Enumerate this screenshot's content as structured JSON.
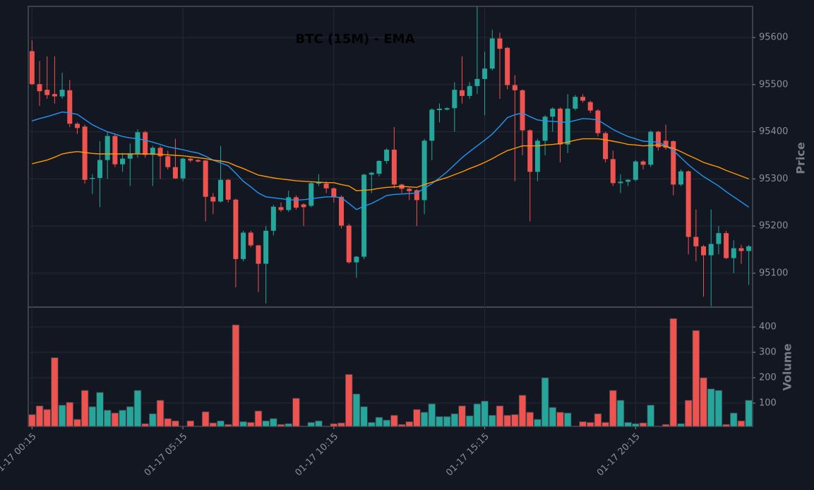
{
  "chart_data": {
    "type": "candlestick",
    "title": "BTC (15M) - EMA",
    "y_label": "Price",
    "categories": [
      "01-17 00:15",
      null,
      null,
      null,
      null,
      null,
      null,
      null,
      null,
      null,
      null,
      null,
      null,
      null,
      null,
      null,
      null,
      null,
      null,
      null,
      "01-17 05:15",
      null,
      null,
      null,
      null,
      null,
      null,
      null,
      null,
      null,
      null,
      null,
      null,
      null,
      null,
      null,
      null,
      null,
      null,
      null,
      "01-17 10:15",
      null,
      null,
      null,
      null,
      null,
      null,
      null,
      null,
      null,
      null,
      null,
      null,
      null,
      null,
      null,
      null,
      null,
      null,
      null,
      "01-17 15:15",
      null,
      null,
      null,
      null,
      null,
      null,
      null,
      null,
      null,
      null,
      null,
      null,
      null,
      null,
      null,
      null,
      null,
      null,
      null,
      "01-17 20:15",
      null,
      null,
      null,
      null,
      null,
      null,
      null,
      null,
      null,
      null,
      null,
      null,
      null,
      null,
      null
    ],
    "open": [
      95571,
      95501,
      95489,
      95480,
      95475,
      95488,
      95417,
      95411,
      95300,
      95302,
      95340,
      95391,
      95331,
      95343,
      95354,
      95399,
      95351,
      95366,
      95348,
      95325,
      95301,
      95343,
      95340,
      95339,
      95262,
      95252,
      95298,
      95256,
      95130,
      95186,
      95159,
      95120,
      95190,
      95240,
      95234,
      95261,
      95246,
      95243,
      95290,
      95290,
      95280,
      95262,
      95201,
      95123,
      95135,
      95309,
      95311,
      95338,
      95362,
      95288,
      95279,
      95276,
      95255,
      95381,
      95446,
      95447,
      95450,
      95488,
      95476,
      95497,
      95512,
      95534,
      95598,
      95578,
      95499,
      95488,
      95403,
      95315,
      95381,
      95432,
      95449,
      95373,
      95449,
      95474,
      95463,
      95445,
      95397,
      95342,
      95291,
      95294,
      95298,
      95337,
      95330,
      95400,
      95381,
      95380,
      95288,
      95316,
      95177,
      95157,
      95138,
      95162,
      95185,
      95132,
      95153,
      95147
    ],
    "high": [
      95594,
      95550,
      95560,
      95560,
      95525,
      95510,
      95420,
      95415,
      95310,
      95380,
      95400,
      95395,
      95355,
      95375,
      95405,
      95402,
      95370,
      95370,
      95360,
      95385,
      95345,
      95345,
      95342,
      95340,
      95270,
      95370,
      95300,
      95258,
      95190,
      95190,
      95160,
      95200,
      95245,
      95250,
      95275,
      95265,
      95248,
      95293,
      95310,
      95295,
      95282,
      95265,
      95205,
      95137,
      95311,
      95315,
      95340,
      95365,
      95410,
      95290,
      95281,
      95278,
      95385,
      95450,
      95460,
      95452,
      95505,
      95560,
      95505,
      95665,
      95570,
      95616,
      95610,
      95580,
      95520,
      95490,
      95405,
      95385,
      95435,
      95452,
      95452,
      95480,
      95478,
      95480,
      95466,
      95448,
      95400,
      95360,
      95310,
      95300,
      95340,
      95340,
      95403,
      95402,
      95415,
      95382,
      95320,
      95318,
      95235,
      95160,
      95235,
      95200,
      95190,
      95170,
      95160,
      95160
    ],
    "low": [
      95499,
      95455,
      95470,
      95460,
      95470,
      95410,
      95395,
      95290,
      95268,
      95240,
      95300,
      95325,
      95315,
      95285,
      95345,
      95345,
      95285,
      95300,
      95320,
      95300,
      95295,
      95335,
      95335,
      95210,
      95225,
      95250,
      95250,
      95070,
      95125,
      95155,
      95060,
      95036,
      95180,
      95230,
      95230,
      95235,
      95200,
      95240,
      95285,
      95270,
      95250,
      95195,
      95120,
      95090,
      95130,
      95270,
      95305,
      95332,
      95280,
      95270,
      95255,
      95200,
      95225,
      95340,
      95420,
      95445,
      95400,
      95460,
      95470,
      95480,
      95435,
      95530,
      95470,
      95490,
      95295,
      95350,
      95210,
      95295,
      95350,
      95400,
      95335,
      95355,
      95445,
      95462,
      95440,
      95390,
      95335,
      95285,
      95270,
      95285,
      95295,
      95320,
      95325,
      95360,
      95362,
      95265,
      95285,
      95140,
      95125,
      95050,
      95030,
      95140,
      95130,
      95100,
      95120,
      95075
    ],
    "close": [
      95501,
      95486,
      95478,
      95475,
      95489,
      95417,
      95408,
      95298,
      95302,
      95340,
      95391,
      95331,
      95343,
      95354,
      95399,
      95351,
      95366,
      95348,
      95325,
      95301,
      95343,
      95339,
      95337,
      95262,
      95252,
      95298,
      95256,
      95130,
      95186,
      95159,
      95120,
      95190,
      95241,
      95234,
      95261,
      95239,
      95240,
      95291,
      95294,
      95280,
      95262,
      95201,
      95123,
      95135,
      95309,
      95313,
      95338,
      95362,
      95288,
      95279,
      95274,
      95255,
      95381,
      95447,
      95449,
      95450,
      95489,
      95476,
      95497,
      95512,
      95534,
      95598,
      95576,
      95499,
      95488,
      95403,
      95315,
      95381,
      95432,
      95449,
      95373,
      95449,
      95474,
      95466,
      95445,
      95397,
      95342,
      95291,
      95294,
      95298,
      95337,
      95330,
      95400,
      95367,
      95366,
      95288,
      95316,
      95177,
      95157,
      95138,
      95162,
      95185,
      95132,
      95153,
      95147,
      95157
    ],
    "up_color": "#26a69a",
    "down_color": "#ef5350",
    "series": [
      {
        "color": "#2196f3",
        "values": [
          95423,
          95428,
          95432,
          95437,
          95442,
          95440,
          95437,
          95426,
          95415,
          95407,
          95400,
          95395,
          95390,
          95387,
          95385,
          95382,
          95378,
          95373,
          95368,
          95365,
          95362,
          95358,
          95355,
          95348,
          95340,
          95334,
          95328,
          95312,
          95295,
          95283,
          95270,
          95262,
          95260,
          95258,
          95256,
          95255,
          95256,
          95258,
          95260,
          95262,
          95262,
          95260,
          95248,
          95235,
          95242,
          95248,
          95256,
          95265,
          95267,
          95268,
          95269,
          95270,
          95280,
          95290,
          95302,
          95315,
          95330,
          95345,
          95358,
          95370,
          95382,
          95395,
          95412,
          95430,
          95436,
          95440,
          95432,
          95425,
          95423,
          95422,
          95421,
          95420,
          95424,
          95428,
          95427,
          95425,
          95415,
          95405,
          95397,
          95390,
          95385,
          95380,
          95379,
          95378,
          95370,
          95360,
          95345,
          95330,
          95317,
          95305,
          95295,
          95285,
          95273,
          95262,
          95251,
          95240
        ]
      },
      {
        "color": "#ff9800",
        "values": [
          95332,
          95336,
          95340,
          95346,
          95353,
          95356,
          95358,
          95356,
          95354,
          95353,
          95353,
          95353,
          95353,
          95353,
          95353,
          95353,
          95353,
          95352,
          95351,
          95350,
          95349,
          95347,
          95345,
          95343,
          95340,
          95338,
          95335,
          95328,
          95322,
          95315,
          95308,
          95305,
          95302,
          95300,
          95298,
          95296,
          95295,
          95294,
          95293,
          95292,
          95292,
          95288,
          95285,
          95275,
          95276,
          95277,
          95280,
          95282,
          95283,
          95284,
          95283,
          95282,
          95288,
          95293,
          95298,
          95303,
          95309,
          95315,
          95322,
          95328,
          95335,
          95343,
          95352,
          95360,
          95365,
          95370,
          95370,
          95370,
          95372,
          95373,
          95375,
          95378,
          95382,
          95385,
          95385,
          95385,
          95383,
          95380,
          95377,
          95373,
          95372,
          95370,
          95371,
          95372,
          95369,
          95365,
          95358,
          95350,
          95343,
          95335,
          95330,
          95325,
          95318,
          95312,
          95306,
          95300
        ]
      }
    ],
    "ylim": [
      95028,
      95666
    ],
    "yticks": [
      95100,
      95200,
      95300,
      95400,
      95500,
      95600
    ],
    "grid": true,
    "volume": {
      "y_label": "Volume",
      "values": [
        55,
        89,
        75,
        279,
        92,
        103,
        36,
        150,
        86,
        142,
        72,
        61,
        72,
        86,
        150,
        19,
        58,
        111,
        39,
        30,
        10,
        30,
        10,
        66,
        22,
        30,
        16,
        408,
        27,
        24,
        69,
        30,
        39,
        16,
        19,
        119,
        10,
        24,
        30,
        10,
        19,
        22,
        213,
        136,
        86,
        24,
        44,
        33,
        52,
        16,
        27,
        75,
        64,
        97,
        47,
        47,
        58,
        89,
        50,
        97,
        108,
        52,
        89,
        52,
        55,
        131,
        64,
        36,
        200,
        83,
        64,
        61,
        10,
        27,
        24,
        58,
        24,
        150,
        111,
        24,
        19,
        22,
        92,
        10,
        16,
        433,
        19,
        111,
        386,
        200,
        156,
        150,
        16,
        61,
        30,
        111
      ],
      "ylim": [
        8,
        478
      ],
      "yticks": [
        100,
        200,
        300,
        400
      ]
    }
  }
}
